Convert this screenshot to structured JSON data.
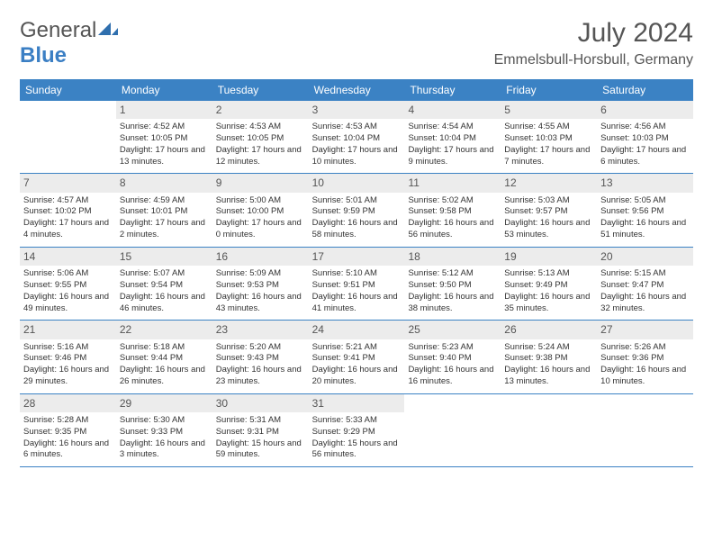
{
  "brand": {
    "part1": "General",
    "part2": "Blue"
  },
  "title": "July 2024",
  "location": "Emmelsbull-Horsbull, Germany",
  "colors": {
    "header_bg": "#3b82c4",
    "daynum_bg": "#ececec",
    "row_border": "#3b82c4",
    "text": "#333333",
    "title_text": "#555555"
  },
  "weekdays": [
    "Sunday",
    "Monday",
    "Tuesday",
    "Wednesday",
    "Thursday",
    "Friday",
    "Saturday"
  ],
  "weeks": [
    [
      {
        "n": "",
        "sr": "",
        "ss": "",
        "dl": ""
      },
      {
        "n": "1",
        "sr": "Sunrise: 4:52 AM",
        "ss": "Sunset: 10:05 PM",
        "dl": "Daylight: 17 hours and 13 minutes."
      },
      {
        "n": "2",
        "sr": "Sunrise: 4:53 AM",
        "ss": "Sunset: 10:05 PM",
        "dl": "Daylight: 17 hours and 12 minutes."
      },
      {
        "n": "3",
        "sr": "Sunrise: 4:53 AM",
        "ss": "Sunset: 10:04 PM",
        "dl": "Daylight: 17 hours and 10 minutes."
      },
      {
        "n": "4",
        "sr": "Sunrise: 4:54 AM",
        "ss": "Sunset: 10:04 PM",
        "dl": "Daylight: 17 hours and 9 minutes."
      },
      {
        "n": "5",
        "sr": "Sunrise: 4:55 AM",
        "ss": "Sunset: 10:03 PM",
        "dl": "Daylight: 17 hours and 7 minutes."
      },
      {
        "n": "6",
        "sr": "Sunrise: 4:56 AM",
        "ss": "Sunset: 10:03 PM",
        "dl": "Daylight: 17 hours and 6 minutes."
      }
    ],
    [
      {
        "n": "7",
        "sr": "Sunrise: 4:57 AM",
        "ss": "Sunset: 10:02 PM",
        "dl": "Daylight: 17 hours and 4 minutes."
      },
      {
        "n": "8",
        "sr": "Sunrise: 4:59 AM",
        "ss": "Sunset: 10:01 PM",
        "dl": "Daylight: 17 hours and 2 minutes."
      },
      {
        "n": "9",
        "sr": "Sunrise: 5:00 AM",
        "ss": "Sunset: 10:00 PM",
        "dl": "Daylight: 17 hours and 0 minutes."
      },
      {
        "n": "10",
        "sr": "Sunrise: 5:01 AM",
        "ss": "Sunset: 9:59 PM",
        "dl": "Daylight: 16 hours and 58 minutes."
      },
      {
        "n": "11",
        "sr": "Sunrise: 5:02 AM",
        "ss": "Sunset: 9:58 PM",
        "dl": "Daylight: 16 hours and 56 minutes."
      },
      {
        "n": "12",
        "sr": "Sunrise: 5:03 AM",
        "ss": "Sunset: 9:57 PM",
        "dl": "Daylight: 16 hours and 53 minutes."
      },
      {
        "n": "13",
        "sr": "Sunrise: 5:05 AM",
        "ss": "Sunset: 9:56 PM",
        "dl": "Daylight: 16 hours and 51 minutes."
      }
    ],
    [
      {
        "n": "14",
        "sr": "Sunrise: 5:06 AM",
        "ss": "Sunset: 9:55 PM",
        "dl": "Daylight: 16 hours and 49 minutes."
      },
      {
        "n": "15",
        "sr": "Sunrise: 5:07 AM",
        "ss": "Sunset: 9:54 PM",
        "dl": "Daylight: 16 hours and 46 minutes."
      },
      {
        "n": "16",
        "sr": "Sunrise: 5:09 AM",
        "ss": "Sunset: 9:53 PM",
        "dl": "Daylight: 16 hours and 43 minutes."
      },
      {
        "n": "17",
        "sr": "Sunrise: 5:10 AM",
        "ss": "Sunset: 9:51 PM",
        "dl": "Daylight: 16 hours and 41 minutes."
      },
      {
        "n": "18",
        "sr": "Sunrise: 5:12 AM",
        "ss": "Sunset: 9:50 PM",
        "dl": "Daylight: 16 hours and 38 minutes."
      },
      {
        "n": "19",
        "sr": "Sunrise: 5:13 AM",
        "ss": "Sunset: 9:49 PM",
        "dl": "Daylight: 16 hours and 35 minutes."
      },
      {
        "n": "20",
        "sr": "Sunrise: 5:15 AM",
        "ss": "Sunset: 9:47 PM",
        "dl": "Daylight: 16 hours and 32 minutes."
      }
    ],
    [
      {
        "n": "21",
        "sr": "Sunrise: 5:16 AM",
        "ss": "Sunset: 9:46 PM",
        "dl": "Daylight: 16 hours and 29 minutes."
      },
      {
        "n": "22",
        "sr": "Sunrise: 5:18 AM",
        "ss": "Sunset: 9:44 PM",
        "dl": "Daylight: 16 hours and 26 minutes."
      },
      {
        "n": "23",
        "sr": "Sunrise: 5:20 AM",
        "ss": "Sunset: 9:43 PM",
        "dl": "Daylight: 16 hours and 23 minutes."
      },
      {
        "n": "24",
        "sr": "Sunrise: 5:21 AM",
        "ss": "Sunset: 9:41 PM",
        "dl": "Daylight: 16 hours and 20 minutes."
      },
      {
        "n": "25",
        "sr": "Sunrise: 5:23 AM",
        "ss": "Sunset: 9:40 PM",
        "dl": "Daylight: 16 hours and 16 minutes."
      },
      {
        "n": "26",
        "sr": "Sunrise: 5:24 AM",
        "ss": "Sunset: 9:38 PM",
        "dl": "Daylight: 16 hours and 13 minutes."
      },
      {
        "n": "27",
        "sr": "Sunrise: 5:26 AM",
        "ss": "Sunset: 9:36 PM",
        "dl": "Daylight: 16 hours and 10 minutes."
      }
    ],
    [
      {
        "n": "28",
        "sr": "Sunrise: 5:28 AM",
        "ss": "Sunset: 9:35 PM",
        "dl": "Daylight: 16 hours and 6 minutes."
      },
      {
        "n": "29",
        "sr": "Sunrise: 5:30 AM",
        "ss": "Sunset: 9:33 PM",
        "dl": "Daylight: 16 hours and 3 minutes."
      },
      {
        "n": "30",
        "sr": "Sunrise: 5:31 AM",
        "ss": "Sunset: 9:31 PM",
        "dl": "Daylight: 15 hours and 59 minutes."
      },
      {
        "n": "31",
        "sr": "Sunrise: 5:33 AM",
        "ss": "Sunset: 9:29 PM",
        "dl": "Daylight: 15 hours and 56 minutes."
      },
      {
        "n": "",
        "sr": "",
        "ss": "",
        "dl": ""
      },
      {
        "n": "",
        "sr": "",
        "ss": "",
        "dl": ""
      },
      {
        "n": "",
        "sr": "",
        "ss": "",
        "dl": ""
      }
    ]
  ]
}
